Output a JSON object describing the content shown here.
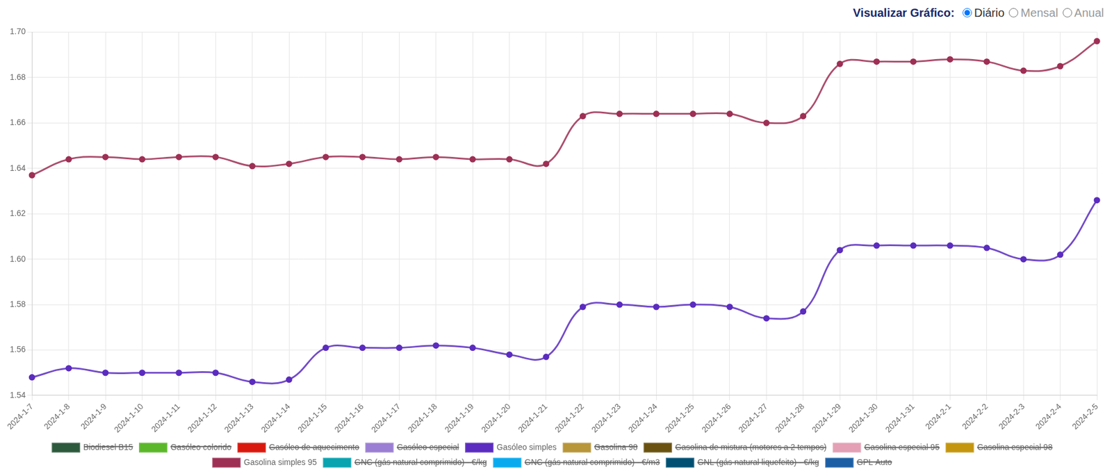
{
  "header": {
    "label": "Visualizar Gráfico:",
    "options": [
      "Diário",
      "Mensal",
      "Anual"
    ],
    "selected": "Diário"
  },
  "chart_data": {
    "type": "line",
    "x": [
      "2024-1-7",
      "2024-1-8",
      "2024-1-9",
      "2024-1-10",
      "2024-1-11",
      "2024-1-12",
      "2024-1-13",
      "2024-1-14",
      "2024-1-15",
      "2024-1-16",
      "2024-1-17",
      "2024-1-18",
      "2024-1-19",
      "2024-1-20",
      "2024-1-21",
      "2024-1-22",
      "2024-1-23",
      "2024-1-24",
      "2024-1-25",
      "2024-1-26",
      "2024-1-27",
      "2024-1-28",
      "2024-1-29",
      "2024-1-30",
      "2024-1-31",
      "2024-2-1",
      "2024-2-2",
      "2024-2-3",
      "2024-2-4",
      "2024-2-5"
    ],
    "series": [
      {
        "name": "Biodiesel B15",
        "color": "#2d5a3d",
        "values": [
          null,
          null,
          null,
          null,
          null,
          null,
          null,
          null,
          null,
          null,
          null,
          null,
          null,
          null,
          null,
          null,
          null,
          null,
          null,
          null,
          null,
          null,
          null,
          null,
          null,
          null,
          null,
          null,
          null,
          null
        ]
      },
      {
        "name": "Gasóleo colorido",
        "color": "#5cb82a",
        "values": [
          null,
          null,
          null,
          null,
          null,
          null,
          null,
          null,
          null,
          null,
          null,
          null,
          null,
          null,
          null,
          null,
          null,
          null,
          null,
          null,
          null,
          null,
          null,
          null,
          null,
          null,
          null,
          null,
          null,
          null
        ]
      },
      {
        "name": "Gasóleo de aquecimento",
        "color": "#d9190e",
        "values": [
          null,
          null,
          null,
          null,
          null,
          null,
          null,
          null,
          null,
          null,
          null,
          null,
          null,
          null,
          null,
          null,
          null,
          null,
          null,
          null,
          null,
          null,
          null,
          null,
          null,
          null,
          null,
          null,
          null,
          null
        ]
      },
      {
        "name": "Gasóleo especial",
        "color": "#9b7fd4",
        "values": [
          null,
          null,
          null,
          null,
          null,
          null,
          null,
          null,
          null,
          null,
          null,
          null,
          null,
          null,
          null,
          null,
          null,
          null,
          null,
          null,
          null,
          null,
          null,
          null,
          null,
          null,
          null,
          null,
          null,
          null
        ]
      },
      {
        "name": "Gasóleo simples",
        "color": "#5b2cbf",
        "values": [
          1.548,
          1.552,
          1.55,
          1.55,
          1.55,
          1.55,
          1.546,
          1.547,
          1.561,
          1.561,
          1.561,
          1.562,
          1.561,
          1.558,
          1.557,
          1.579,
          1.58,
          1.579,
          1.58,
          1.579,
          1.574,
          1.577,
          1.604,
          1.606,
          1.606,
          1.606,
          1.605,
          1.6,
          1.602,
          1.626
        ]
      },
      {
        "name": "Gasolina 98",
        "color": "#b8963a",
        "values": [
          null,
          null,
          null,
          null,
          null,
          null,
          null,
          null,
          null,
          null,
          null,
          null,
          null,
          null,
          null,
          null,
          null,
          null,
          null,
          null,
          null,
          null,
          null,
          null,
          null,
          null,
          null,
          null,
          null,
          null
        ]
      },
      {
        "name": "Gasolina de mistura (motores a 2 tempos)",
        "color": "#6b5210",
        "values": [
          null,
          null,
          null,
          null,
          null,
          null,
          null,
          null,
          null,
          null,
          null,
          null,
          null,
          null,
          null,
          null,
          null,
          null,
          null,
          null,
          null,
          null,
          null,
          null,
          null,
          null,
          null,
          null,
          null,
          null
        ]
      },
      {
        "name": "Gasolina especial 95",
        "color": "#e4a0b5",
        "values": [
          null,
          null,
          null,
          null,
          null,
          null,
          null,
          null,
          null,
          null,
          null,
          null,
          null,
          null,
          null,
          null,
          null,
          null,
          null,
          null,
          null,
          null,
          null,
          null,
          null,
          null,
          null,
          null,
          null,
          null
        ]
      },
      {
        "name": "Gasolina especial 98",
        "color": "#c4960f",
        "values": [
          null,
          null,
          null,
          null,
          null,
          null,
          null,
          null,
          null,
          null,
          null,
          null,
          null,
          null,
          null,
          null,
          null,
          null,
          null,
          null,
          null,
          null,
          null,
          null,
          null,
          null,
          null,
          null,
          null,
          null
        ]
      },
      {
        "name": "Gasolina simples 95",
        "color": "#9e2f55",
        "values": [
          1.637,
          1.644,
          1.645,
          1.644,
          1.645,
          1.645,
          1.641,
          1.642,
          1.645,
          1.645,
          1.644,
          1.645,
          1.644,
          1.644,
          1.642,
          1.663,
          1.664,
          1.664,
          1.664,
          1.664,
          1.66,
          1.663,
          1.686,
          1.687,
          1.687,
          1.688,
          1.687,
          1.683,
          1.685,
          1.696
        ]
      },
      {
        "name": "GNC (gás natural comprimido) - €/kg",
        "color": "#0aa3b0",
        "values": [
          null,
          null,
          null,
          null,
          null,
          null,
          null,
          null,
          null,
          null,
          null,
          null,
          null,
          null,
          null,
          null,
          null,
          null,
          null,
          null,
          null,
          null,
          null,
          null,
          null,
          null,
          null,
          null,
          null,
          null
        ]
      },
      {
        "name": "GNC (gás natural comprimido) - €/m3",
        "color": "#0aaaee",
        "values": [
          null,
          null,
          null,
          null,
          null,
          null,
          null,
          null,
          null,
          null,
          null,
          null,
          null,
          null,
          null,
          null,
          null,
          null,
          null,
          null,
          null,
          null,
          null,
          null,
          null,
          null,
          null,
          null,
          null,
          null
        ]
      },
      {
        "name": "GNL (gás natural liquefeito) - €/kg",
        "color": "#005073",
        "values": [
          null,
          null,
          null,
          null,
          null,
          null,
          null,
          null,
          null,
          null,
          null,
          null,
          null,
          null,
          null,
          null,
          null,
          null,
          null,
          null,
          null,
          null,
          null,
          null,
          null,
          null,
          null,
          null,
          null,
          null
        ]
      },
      {
        "name": "GPL Auto",
        "color": "#1d5fa5",
        "values": [
          null,
          null,
          null,
          null,
          null,
          null,
          null,
          null,
          null,
          null,
          null,
          null,
          null,
          null,
          null,
          null,
          null,
          null,
          null,
          null,
          null,
          null,
          null,
          null,
          null,
          null,
          null,
          null,
          null,
          null
        ]
      }
    ],
    "ylim": [
      1.54,
      1.7
    ],
    "yticks": [
      1.54,
      1.56,
      1.58,
      {
        "value": 1.6,
        "label": "1.60"
      },
      1.62,
      1.64,
      1.66,
      1.68,
      {
        "value": 1.7,
        "label": "1.70"
      }
    ],
    "grid": true,
    "legend": "bottom",
    "marker": "circle"
  }
}
